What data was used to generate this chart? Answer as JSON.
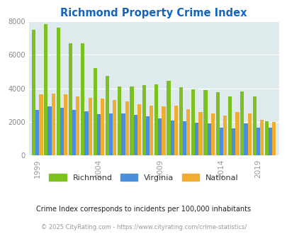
{
  "title": "Richmond Property Crime Index",
  "title_color": "#1565c0",
  "years": [
    1999,
    2000,
    2001,
    2002,
    2003,
    2004,
    2005,
    2006,
    2007,
    2008,
    2009,
    2010,
    2011,
    2012,
    2013,
    2014,
    2015,
    2016,
    2019,
    2020
  ],
  "richmond": [
    7480,
    7800,
    7600,
    6700,
    6680,
    5200,
    4730,
    4100,
    4120,
    4200,
    4220,
    4460,
    4050,
    3950,
    3900,
    3780,
    3500,
    3800,
    3500,
    2050
  ],
  "virginia": [
    2720,
    2930,
    2850,
    2700,
    2650,
    2480,
    2490,
    2490,
    2420,
    2320,
    2210,
    2090,
    2060,
    1950,
    1920,
    1680,
    1620,
    1900,
    1650,
    1680
  ],
  "national": [
    3640,
    3670,
    3630,
    3520,
    3440,
    3380,
    3310,
    3230,
    3060,
    2970,
    2940,
    2960,
    2740,
    2570,
    2490,
    2360,
    2580,
    2500,
    2110,
    1980
  ],
  "richmond_color": "#7dc021",
  "virginia_color": "#4b8fdb",
  "national_color": "#f0ad30",
  "bg_color": "#deeaec",
  "ylim": [
    0,
    8000
  ],
  "yticks": [
    0,
    2000,
    4000,
    6000,
    8000
  ],
  "xtick_years": [
    1999,
    2004,
    2009,
    2014,
    2019
  ],
  "subtitle": "Crime Index corresponds to incidents per 100,000 inhabitants",
  "footer": "© 2025 CityRating.com - https://www.cityrating.com/crime-statistics/",
  "legend_labels": [
    "Richmond",
    "Virginia",
    "National"
  ]
}
